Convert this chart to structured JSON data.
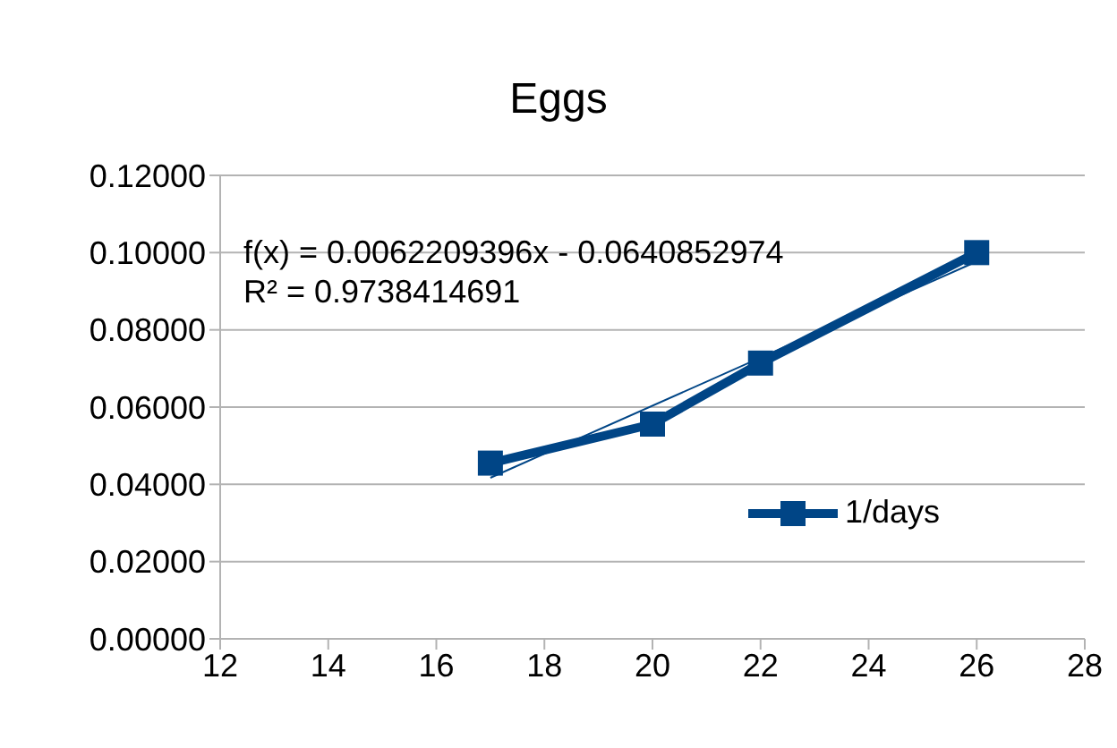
{
  "chart_data": {
    "type": "line",
    "title": "Eggs",
    "x": [
      17,
      20,
      22,
      26
    ],
    "series": [
      {
        "name": "1/days",
        "color": "#004586",
        "values": [
          0.0455,
          0.0556,
          0.0714,
          0.1
        ],
        "marker": "square"
      },
      {
        "type": "line",
        "x": [
          17,
          26
        ],
        "values": [
          0.0417,
          0.0977
        ],
        "color": "#004586",
        "marker": "none"
      }
    ],
    "xlim": [
      12,
      28
    ],
    "xticks": [
      12,
      14,
      16,
      18,
      20,
      22,
      24,
      26,
      28
    ],
    "ylim": [
      0,
      0.12
    ],
    "yticks": [
      {
        "value": 0,
        "label": "0.00000"
      },
      {
        "value": 0.02,
        "label": "0.02000"
      },
      {
        "value": 0.04,
        "label": "0.04000"
      },
      {
        "value": 0.06,
        "label": "0.06000"
      },
      {
        "value": 0.08,
        "label": "0.08000"
      },
      {
        "value": 0.1,
        "label": "0.10000"
      },
      {
        "value": 0.12,
        "label": "0.12000"
      }
    ],
    "grid": "y",
    "legend": "right",
    "line_style": "solid",
    "annotations": [
      "f(x) = 0.0062209396x - 0.0640852974",
      "R² = 0.9738414691"
    ]
  }
}
